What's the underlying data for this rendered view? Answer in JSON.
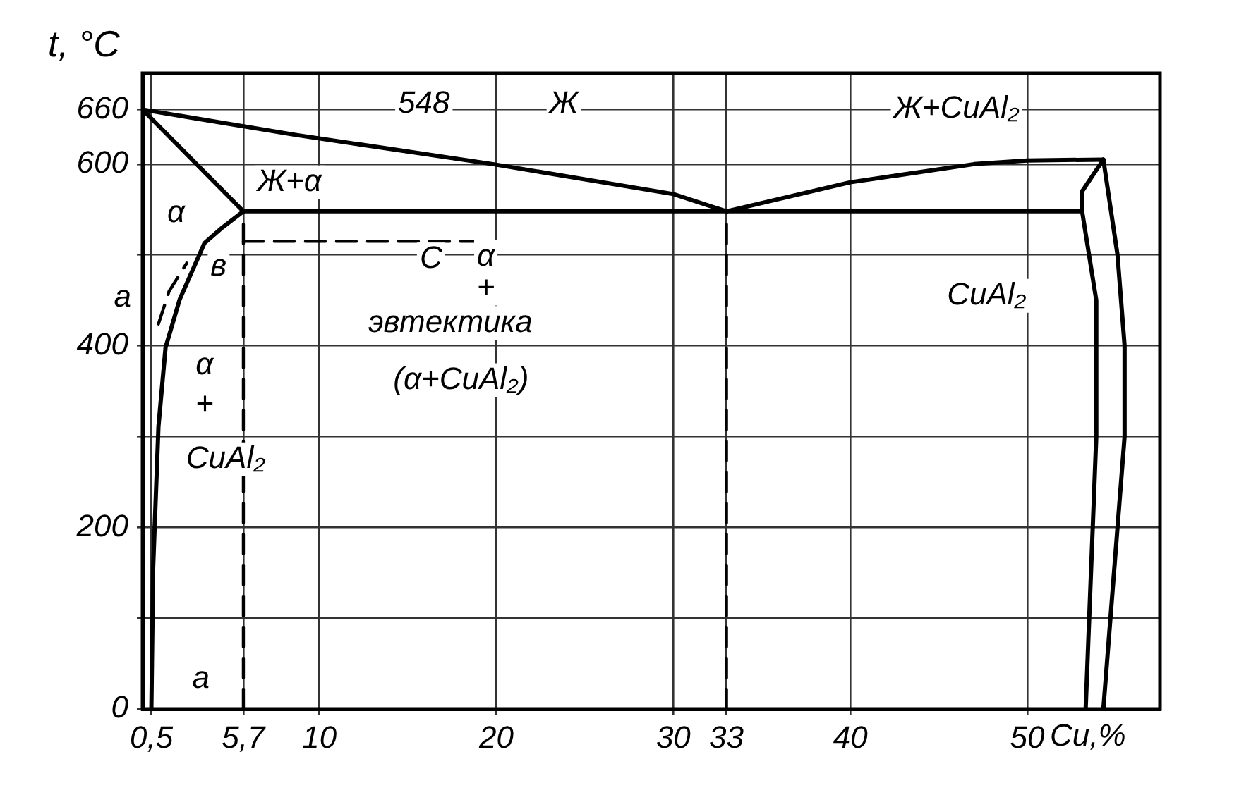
{
  "chart_data": {
    "type": "line",
    "xlabel": "Cu,%",
    "ylabel": "t, °C",
    "xlim": [
      0,
      57.5
    ],
    "ylim": [
      0,
      700
    ],
    "xticks": [
      {
        "value": 0.5,
        "label": "0,5"
      },
      {
        "value": 5.7,
        "label": "5,7"
      },
      10,
      20,
      30,
      33,
      40,
      50
    ],
    "yticks": [
      0,
      {
        "value": 100,
        "label": null
      },
      200,
      {
        "value": 300,
        "label": null
      },
      400,
      {
        "value": 500,
        "label": null
      },
      600,
      660
    ],
    "grid": true,
    "legend": false,
    "marker": "none",
    "series": [
      {
        "type": "line",
        "color": "#000000",
        "line_style": "solid",
        "x": [
          0,
          8.7,
          19.8,
          30,
          33
        ],
        "values": [
          660,
          632,
          600,
          567,
          548
        ]
      },
      {
        "type": "line",
        "color": "#000000",
        "line_style": "solid",
        "x": [
          33,
          40,
          47,
          50,
          54.3
        ],
        "values": [
          548,
          580,
          600,
          604,
          605
        ]
      },
      {
        "type": "line",
        "color": "#000000",
        "line_style": "solid",
        "x": [
          0,
          5.7
        ],
        "values": [
          660,
          548
        ]
      },
      {
        "type": "line",
        "color": "#000000",
        "line_style": "solid",
        "x": [
          5.7,
          53.1
        ],
        "values": [
          548,
          548
        ]
      },
      {
        "type": "line",
        "color": "#000000",
        "line_style": "solid",
        "x": [
          5.7,
          4.5,
          3.5,
          2.1,
          1.3,
          0.9,
          0.6,
          0.5
        ],
        "values": [
          548,
          530,
          513,
          451,
          398,
          311,
          156,
          0
        ]
      },
      {
        "type": "line",
        "color": "#000000",
        "line_style": "solid",
        "x": [
          54.3,
          53.1,
          53.1,
          53.9,
          53.9,
          53.7,
          53.3
        ],
        "values": [
          605,
          570,
          548,
          450,
          300,
          200,
          0
        ]
      },
      {
        "type": "line",
        "color": "#000000",
        "line_style": "solid",
        "x": [
          54.3,
          55.1,
          55.5,
          55.5,
          55.1,
          54.7,
          54.3
        ],
        "values": [
          605,
          500,
          400,
          300,
          200,
          100,
          0
        ]
      },
      {
        "type": "line",
        "color": "#000000",
        "line_style": "dashed",
        "x": [
          5.7,
          5.7
        ],
        "values": [
          0,
          548
        ]
      },
      {
        "type": "line",
        "color": "#000000",
        "line_style": "dashed",
        "x": [
          33,
          33
        ],
        "values": [
          0,
          548
        ]
      },
      {
        "type": "line",
        "color": "#000000",
        "line_style": "dashed",
        "x": [
          5.7,
          19.8
        ],
        "values": [
          515,
          515
        ]
      },
      {
        "type": "line",
        "color": "#000000",
        "line_style": "dashed",
        "x": [
          0.9,
          1.5,
          2.5
        ],
        "values": [
          424,
          460,
          491
        ]
      }
    ],
    "annotations": [
      "548",
      "Ж",
      "Ж+CuAl₂",
      "Ж+α",
      "α",
      "в",
      "a",
      "C",
      "α",
      "+",
      "эвтектика",
      "(α+CuAl₂)",
      "α",
      "+",
      "CuAl₂",
      "CuAl₂",
      "a"
    ]
  }
}
